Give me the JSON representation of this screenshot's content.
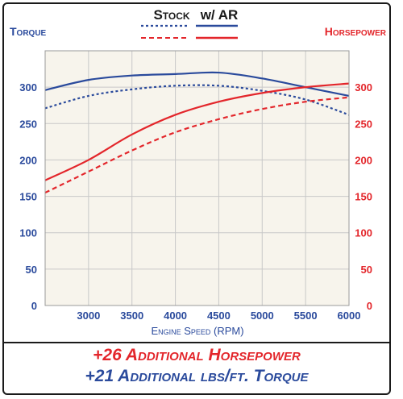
{
  "colors": {
    "torque": "#2a4a9c",
    "horsepower": "#e3262b",
    "grid": "#c8c8c8",
    "plot_bg": "#f7f4ec"
  },
  "legend": {
    "stock_label": "Stock",
    "ar_label": "w/ AR"
  },
  "summary": {
    "horsepower_line": "+26 Additional Horsepower",
    "torque_line": "+21 Additional lbs/ft. Torque"
  },
  "chart_data": {
    "type": "line",
    "title": "",
    "xlabel": "Engine Speed (RPM)",
    "ylabel_left": "Torque",
    "ylabel_right": "Horsepower",
    "xlim": [
      2500,
      6000
    ],
    "ylim_left": [
      0,
      350
    ],
    "ylim_right": [
      0,
      350
    ],
    "x_ticks": [
      3000,
      3500,
      4000,
      4500,
      5000,
      5500,
      6000
    ],
    "y_ticks_left": [
      0,
      50,
      100,
      150,
      200,
      250,
      300
    ],
    "y_ticks_right": [
      0,
      50,
      100,
      150,
      200,
      250,
      300
    ],
    "grid": true,
    "x": [
      2500,
      3000,
      3500,
      4000,
      4500,
      5000,
      5500,
      6000
    ],
    "series": [
      {
        "name": "w/ AR",
        "metric": "torque",
        "axis": "left",
        "style": "solid",
        "values": [
          296,
          310,
          316,
          318,
          320,
          312,
          300,
          288
        ]
      },
      {
        "name": "Stock",
        "metric": "torque",
        "axis": "left",
        "style": "dotted",
        "values": [
          271,
          288,
          297,
          302,
          302,
          295,
          283,
          262
        ]
      },
      {
        "name": "w/ AR",
        "metric": "horsepower",
        "axis": "right",
        "style": "solid",
        "values": [
          172,
          200,
          235,
          262,
          280,
          292,
          300,
          305
        ]
      },
      {
        "name": "Stock",
        "metric": "horsepower",
        "axis": "right",
        "style": "dashed",
        "values": [
          155,
          184,
          213,
          238,
          256,
          270,
          280,
          286
        ]
      }
    ]
  }
}
